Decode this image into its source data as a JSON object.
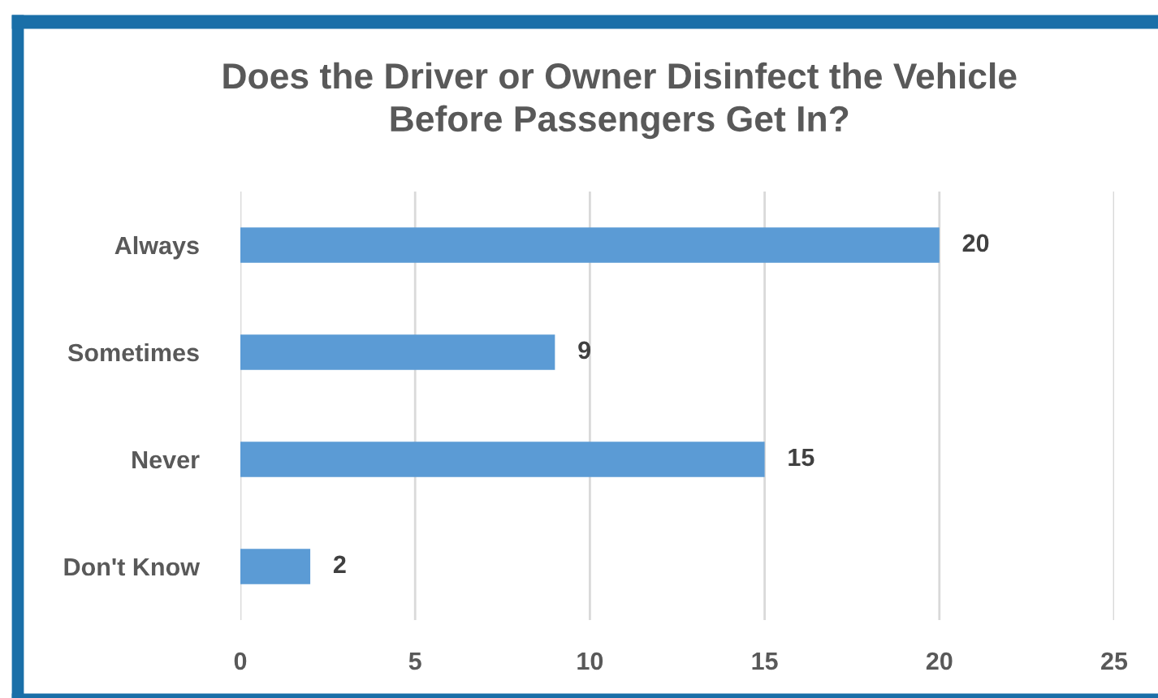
{
  "chart_data": {
    "type": "bar",
    "orientation": "horizontal",
    "title": "Does the Driver or Owner Disinfect the Vehicle\nBefore Passengers Get In?",
    "categories": [
      "Always",
      "Sometimes",
      "Never",
      "Don't Know"
    ],
    "values": [
      20,
      9,
      15,
      2
    ],
    "color": "#5b9bd5",
    "xlim": [
      0,
      25
    ],
    "xticks": [
      0,
      5,
      10,
      15,
      20,
      25
    ],
    "grid": "x",
    "data_labels": true
  }
}
